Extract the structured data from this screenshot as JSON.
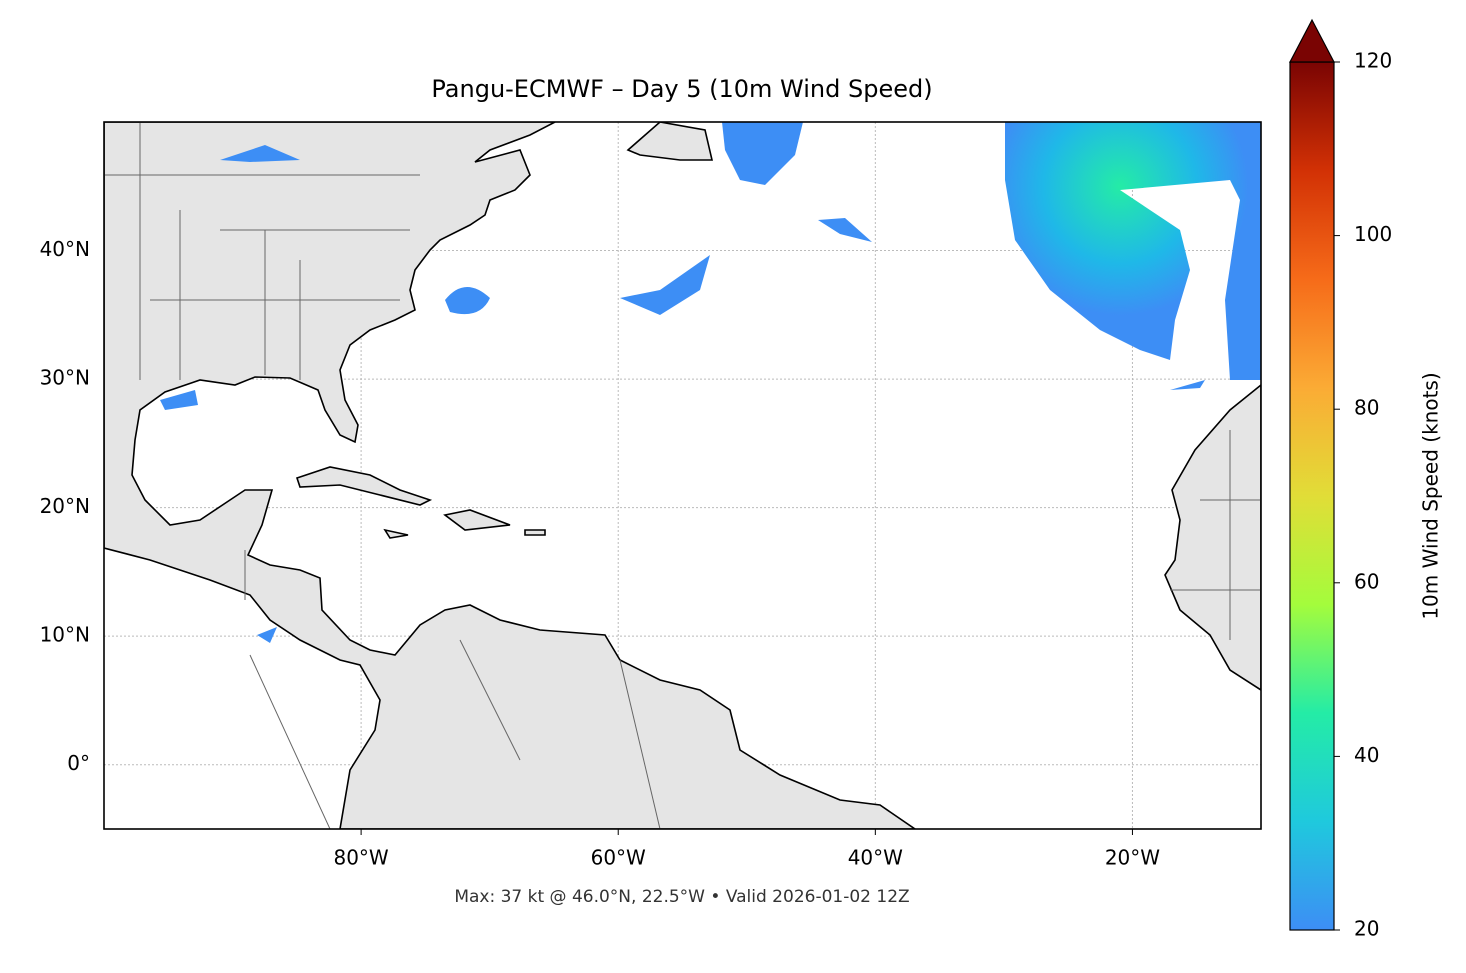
{
  "chart_data": {
    "type": "map",
    "title": "Pangu-ECMWF – Day 5 (10m Wind Speed)",
    "note": "Max: 37 kt @ 46.0°N, 22.5°W • Valid 2026-01-02 12Z",
    "xlim": [
      -100,
      -10
    ],
    "ylim": [
      -5,
      50
    ],
    "xticks": [
      {
        "value": -80,
        "label": "80°W"
      },
      {
        "value": -60,
        "label": "60°W"
      },
      {
        "value": -40,
        "label": "40°W"
      },
      {
        "value": -20,
        "label": "20°W"
      }
    ],
    "yticks": [
      {
        "value": 0,
        "label": "0°"
      },
      {
        "value": 10,
        "label": "10°N"
      },
      {
        "value": 20,
        "label": "20°N"
      },
      {
        "value": 30,
        "label": "30°N"
      },
      {
        "value": 40,
        "label": "40°N"
      }
    ],
    "grid": true,
    "colorbar": {
      "label": "10m Wind Speed (knots)",
      "lim": [
        20,
        120
      ],
      "ticks": [
        20,
        40,
        60,
        80,
        100,
        120
      ],
      "colors": [
        "#3d8ef5",
        "#1fc9dd",
        "#24eca6",
        "#a4fc3c",
        "#e1dd37",
        "#fbab35",
        "#f66b19",
        "#d23105",
        "#7a0403"
      ],
      "extend_color": "#7a0403"
    }
  }
}
